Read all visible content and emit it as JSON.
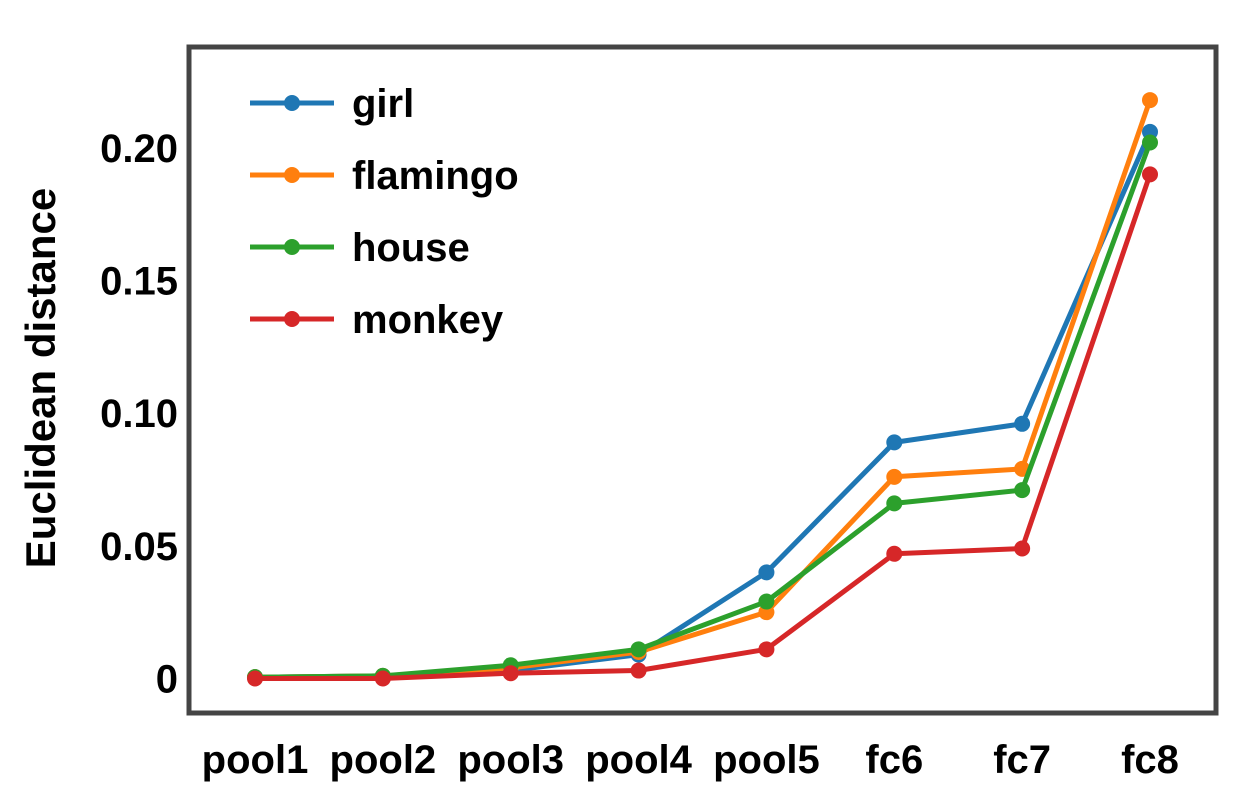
{
  "chart_data": {
    "type": "line",
    "title": "",
    "xlabel": "",
    "ylabel": "Euclidean distance",
    "categories": [
      "pool1",
      "pool2",
      "pool3",
      "pool4",
      "pool5",
      "fc6",
      "fc7",
      "fc8"
    ],
    "ylim": [
      -0.013,
      0.238
    ],
    "yticks": [
      0,
      0.05,
      0.1,
      0.15,
      0.2
    ],
    "ytick_labels": [
      "0",
      "0.05",
      "0.10",
      "0.15",
      "0.20"
    ],
    "grid": false,
    "legend_position": "top-left",
    "series": [
      {
        "name": "girl",
        "color": "#1f77b4",
        "values": [
          0.0005,
          0.001,
          0.003,
          0.009,
          0.04,
          0.089,
          0.096,
          0.206
        ]
      },
      {
        "name": "flamingo",
        "color": "#ff7f0e",
        "values": [
          0.0005,
          0.001,
          0.004,
          0.01,
          0.025,
          0.076,
          0.079,
          0.218
        ]
      },
      {
        "name": "house",
        "color": "#2ca02c",
        "values": [
          0.0005,
          0.001,
          0.005,
          0.011,
          0.029,
          0.066,
          0.071,
          0.202
        ]
      },
      {
        "name": "monkey",
        "color": "#d62728",
        "values": [
          0.0,
          0.0,
          0.002,
          0.003,
          0.011,
          0.047,
          0.049,
          0.19
        ]
      }
    ]
  }
}
